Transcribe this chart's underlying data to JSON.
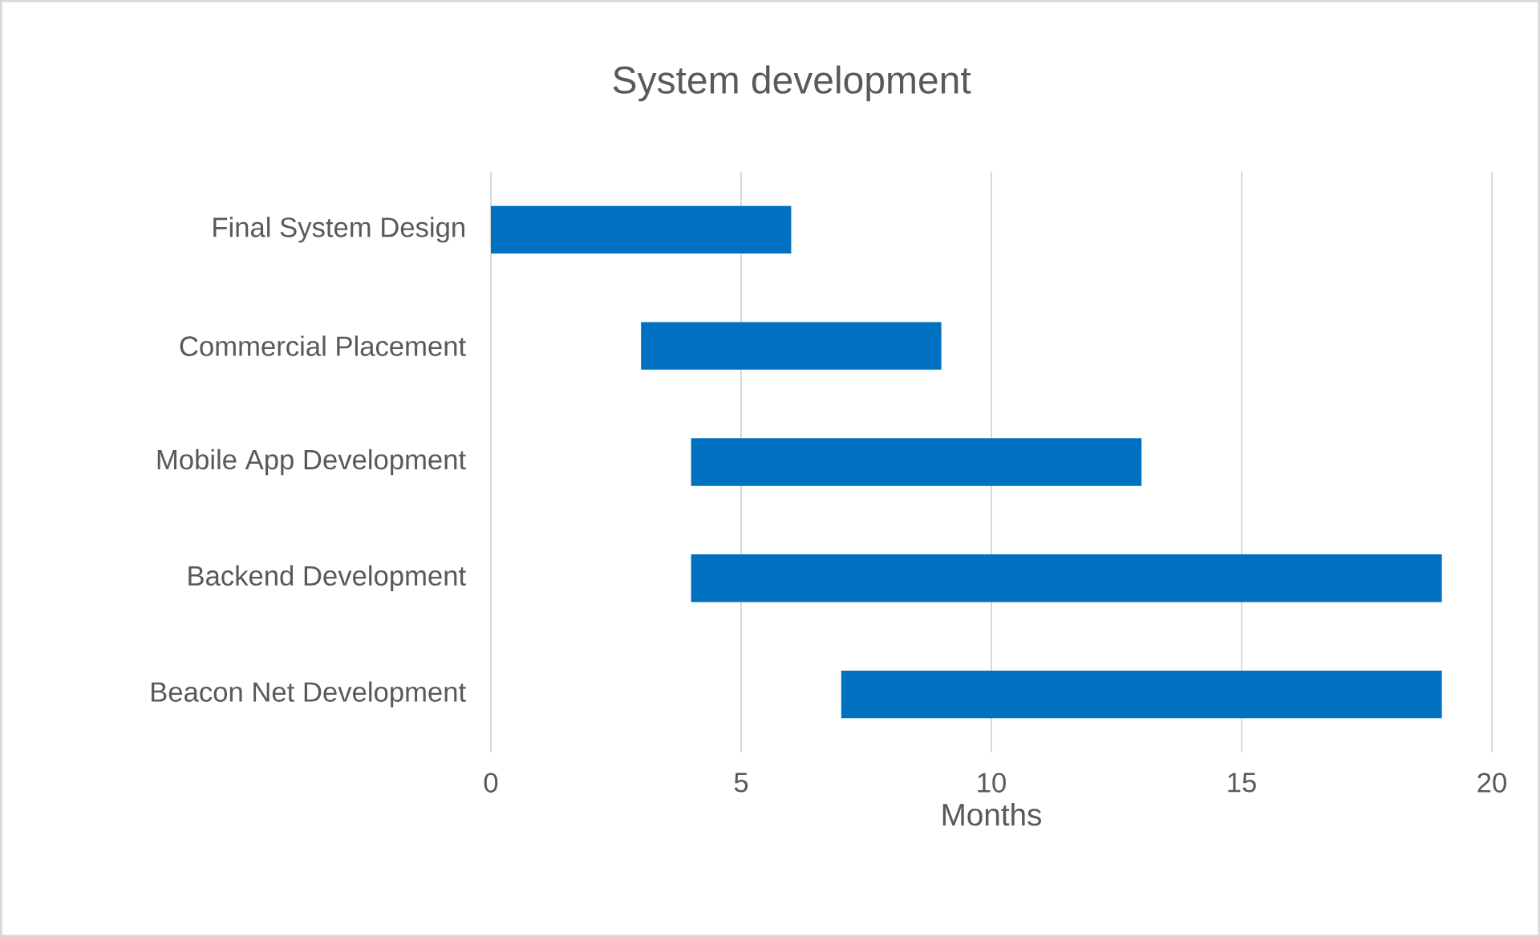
{
  "chart_data": {
    "type": "bar",
    "orientation": "horizontal",
    "title": "System development",
    "xlabel": "Months",
    "categories": [
      "Final System Design",
      "Commercial Placement",
      "Mobile App Development",
      "Backend Development",
      "Beacon Net Development"
    ],
    "base": [
      0,
      3,
      4,
      4,
      7
    ],
    "values": [
      6,
      6,
      9,
      15,
      12
    ],
    "color": "#0070c0",
    "xlim": [
      0,
      20
    ],
    "xticks": [
      0,
      5,
      10,
      15,
      20
    ],
    "grid": "x"
  }
}
